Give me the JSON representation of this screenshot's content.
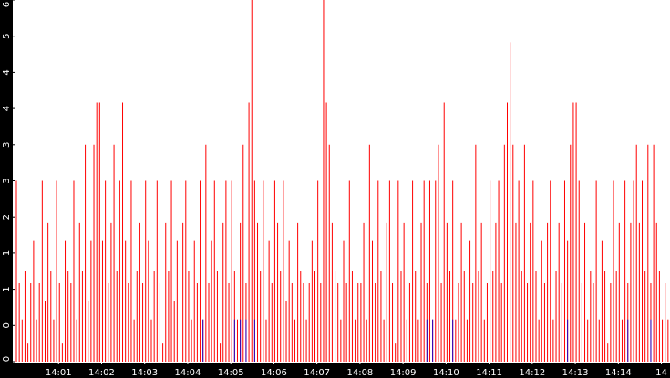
{
  "chart_data": {
    "type": "spikes",
    "xlim": [
      0,
      228
    ],
    "ylim": [
      0,
      6
    ],
    "xticks": [
      {
        "value": 15,
        "label": "14:01"
      },
      {
        "value": 30,
        "label": "14:02"
      },
      {
        "value": 45,
        "label": "14:03"
      },
      {
        "value": 60,
        "label": "14:04"
      },
      {
        "value": 75,
        "label": "14:05"
      },
      {
        "value": 90,
        "label": "14:06"
      },
      {
        "value": 105,
        "label": "14:07"
      },
      {
        "value": 120,
        "label": "14:08"
      },
      {
        "value": 135,
        "label": "14:09"
      },
      {
        "value": 150,
        "label": "14:10"
      },
      {
        "value": 165,
        "label": "14:11"
      },
      {
        "value": 180,
        "label": "14:12"
      },
      {
        "value": 195,
        "label": "14:13"
      },
      {
        "value": 210,
        "label": "14:14"
      },
      {
        "value": 225,
        "label": "14"
      }
    ],
    "yticks": [
      {
        "value": 0,
        "label": "0"
      },
      {
        "value": 0.6,
        "label": "0"
      },
      {
        "value": 1.2,
        "label": "1"
      },
      {
        "value": 1.8,
        "label": "1"
      },
      {
        "value": 2.4,
        "label": "2"
      },
      {
        "value": 3,
        "label": "3"
      },
      {
        "value": 3.6,
        "label": "3"
      },
      {
        "value": 4.2,
        "label": "4"
      },
      {
        "value": 4.8,
        "label": "4"
      },
      {
        "value": 5.4,
        "label": "5"
      },
      {
        "value": 6,
        "label": "6"
      }
    ],
    "series": [
      {
        "color": "#ff0000",
        "values": [
          3,
          1.3,
          0.7,
          1.5,
          0.3,
          1.3,
          2,
          0.7,
          1.3,
          3,
          1,
          2.3,
          1.5,
          0.7,
          3,
          1.3,
          0.3,
          2,
          1.5,
          1.3,
          3,
          0.7,
          2.3,
          1.5,
          3.6,
          1,
          2,
          3.6,
          4.3,
          4.3,
          2,
          3,
          1.3,
          2.3,
          3.6,
          1.5,
          3,
          4.3,
          2,
          1.3,
          3,
          0.7,
          1.5,
          2.3,
          1.3,
          3,
          2,
          0.7,
          1.5,
          3,
          1.3,
          0.3,
          2.3,
          1.5,
          3,
          1,
          2,
          1.3,
          2.3,
          3,
          1.5,
          0.7,
          2,
          1.3,
          3,
          0.7,
          3.6,
          1.3,
          2,
          3,
          1.5,
          0.3,
          2.3,
          3,
          1.3,
          3,
          1.5,
          0.7,
          2.3,
          3.6,
          1.3,
          4.3,
          6,
          3,
          2.3,
          1.5,
          3,
          0.7,
          2,
          1.3,
          3,
          2.3,
          1.5,
          3,
          1,
          2,
          1.3,
          0.7,
          2.3,
          1.5,
          1.3,
          0.7,
          1.3,
          2,
          1.5,
          3,
          1.3,
          6,
          4.3,
          3.6,
          2.3,
          1.5,
          1.3,
          0.7,
          2,
          1.3,
          3,
          1.5,
          0.7,
          1.3,
          1.3,
          2.3,
          0.7,
          3.6,
          2,
          1.3,
          3,
          1.5,
          0.7,
          2.3,
          3,
          1.3,
          0.3,
          3,
          1.5,
          2.3,
          0.7,
          1.3,
          3,
          1.5,
          0.7,
          2.3,
          3,
          1.3,
          3,
          0.7,
          3,
          3.6,
          1.3,
          4.3,
          2.3,
          1.5,
          3,
          0.7,
          1.3,
          2.3,
          1.5,
          0.7,
          2,
          1.3,
          3.6,
          1.5,
          2.3,
          0.7,
          1.3,
          3,
          1.5,
          2.3,
          3,
          1.3,
          3.6,
          4.3,
          5.3,
          3.6,
          2.3,
          3,
          1.5,
          3.6,
          1.3,
          2.3,
          3,
          1.5,
          0.7,
          2,
          1.3,
          2.3,
          3,
          0.7,
          1.5,
          2.3,
          1.3,
          3,
          2,
          3.6,
          4.3,
          4.3,
          3,
          1.3,
          2.3,
          0.7,
          1.5,
          1.3,
          3,
          0.7,
          2,
          1.5,
          0.3,
          1.3,
          3,
          1.5,
          2.3,
          0.7,
          3,
          1.3,
          2.3,
          3,
          3.6,
          2.3,
          3,
          1.5,
          3.6,
          1.3,
          3.6,
          2.3,
          1.5,
          0.7,
          1.3,
          0.7
        ]
      },
      {
        "color": "#2000c0",
        "x": [
          65,
          76,
          78,
          80,
          83,
          143,
          145,
          152,
          192,
          213,
          221
        ],
        "values": [
          0.7,
          0.7,
          0.7,
          0.7,
          0.7,
          0.7,
          0.7,
          0.7,
          0.7,
          0.7,
          0.7
        ]
      }
    ]
  }
}
